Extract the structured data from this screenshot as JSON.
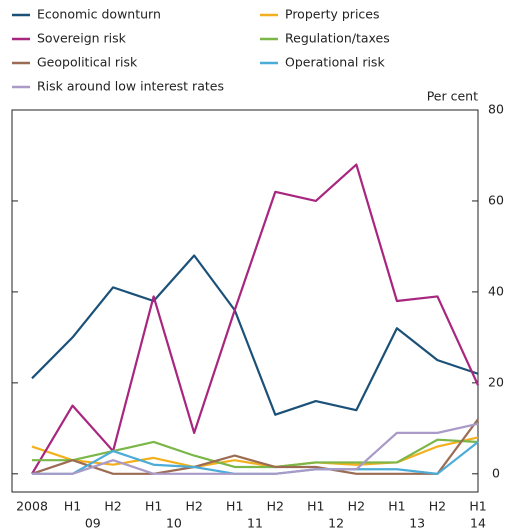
{
  "chart_data": {
    "type": "line",
    "y_label": "Per cent",
    "categories": [
      "2008",
      "H1",
      "H2",
      "H1",
      "H2",
      "H1",
      "H2",
      "H1",
      "H2",
      "H1",
      "H2",
      "H1"
    ],
    "x_group_labels": [
      null,
      "09",
      null,
      "10",
      null,
      "11",
      null,
      "12",
      null,
      "13",
      null,
      "14"
    ],
    "series": [
      {
        "name": "Economic downturn",
        "color": "#1b5178",
        "values": [
          21,
          30,
          41,
          38,
          48,
          36,
          13,
          16,
          14,
          32,
          25,
          22
        ]
      },
      {
        "name": "Property prices",
        "color": "#f2b01e",
        "values": [
          6,
          3,
          2,
          3.5,
          1.5,
          3,
          1.5,
          2.5,
          2,
          2.5,
          6,
          8
        ]
      },
      {
        "name": "Sovereign risk",
        "color": "#a8267f",
        "values": [
          0,
          15,
          5,
          39,
          9,
          36,
          62,
          60,
          68,
          38,
          39,
          19.5
        ]
      },
      {
        "name": "Regulation/taxes",
        "color": "#7ab648",
        "values": [
          3,
          3,
          5,
          7,
          4,
          1.5,
          1.5,
          2.5,
          2.5,
          2.5,
          7.5,
          7
        ]
      },
      {
        "name": "Geopolitical risk",
        "color": "#9b6c53",
        "values": [
          0,
          3,
          0,
          0,
          1.5,
          4,
          1.5,
          1.5,
          0,
          0,
          0,
          12
        ]
      },
      {
        "name": "Operational risk",
        "color": "#4bacd8",
        "values": [
          0,
          0,
          5,
          2,
          1.5,
          0,
          0,
          1,
          1,
          1,
          0,
          7
        ]
      },
      {
        "name": "Risk around low interest rates",
        "color": "#a99ac8",
        "values": [
          0,
          0,
          3,
          0,
          0,
          0,
          0,
          1,
          1,
          9,
          9,
          11
        ]
      }
    ],
    "ylim": [
      -4,
      80
    ],
    "yticks": [
      0,
      20,
      40,
      60,
      80
    ],
    "grid": false
  }
}
